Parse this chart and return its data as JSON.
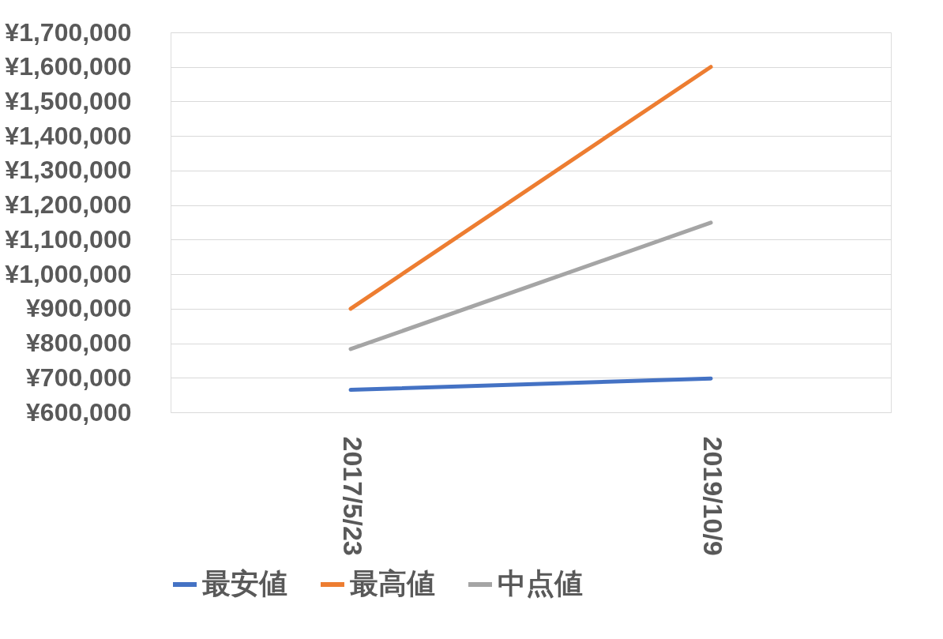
{
  "chart_data": {
    "type": "line",
    "categories": [
      "2017/5/23",
      "2019/10/9"
    ],
    "series": [
      {
        "name": "最安値",
        "color": "#4472c4",
        "values": [
          665000,
          698000
        ]
      },
      {
        "name": "最高値",
        "color": "#ed7d31",
        "values": [
          900000,
          1600000
        ]
      },
      {
        "name": "中点値",
        "color": "#a5a5a5",
        "values": [
          783000,
          1149000
        ]
      }
    ],
    "ylim": [
      600000,
      1700000
    ],
    "yticks": [
      {
        "value": 600000,
        "label": "¥600,000"
      },
      {
        "value": 700000,
        "label": "¥700,000"
      },
      {
        "value": 800000,
        "label": "¥800,000"
      },
      {
        "value": 900000,
        "label": "¥900,000"
      },
      {
        "value": 1000000,
        "label": "¥1,000,000"
      },
      {
        "value": 1100000,
        "label": "¥1,100,000"
      },
      {
        "value": 1200000,
        "label": "¥1,200,000"
      },
      {
        "value": 1300000,
        "label": "¥1,300,000"
      },
      {
        "value": 1400000,
        "label": "¥1,400,000"
      },
      {
        "value": 1500000,
        "label": "¥1,500,000"
      },
      {
        "value": 1600000,
        "label": "¥1,600,000"
      },
      {
        "value": 1700000,
        "label": "¥1,700,000"
      }
    ],
    "grid": "y",
    "legend": "bottom",
    "marker": "none",
    "line_style": "solid"
  }
}
